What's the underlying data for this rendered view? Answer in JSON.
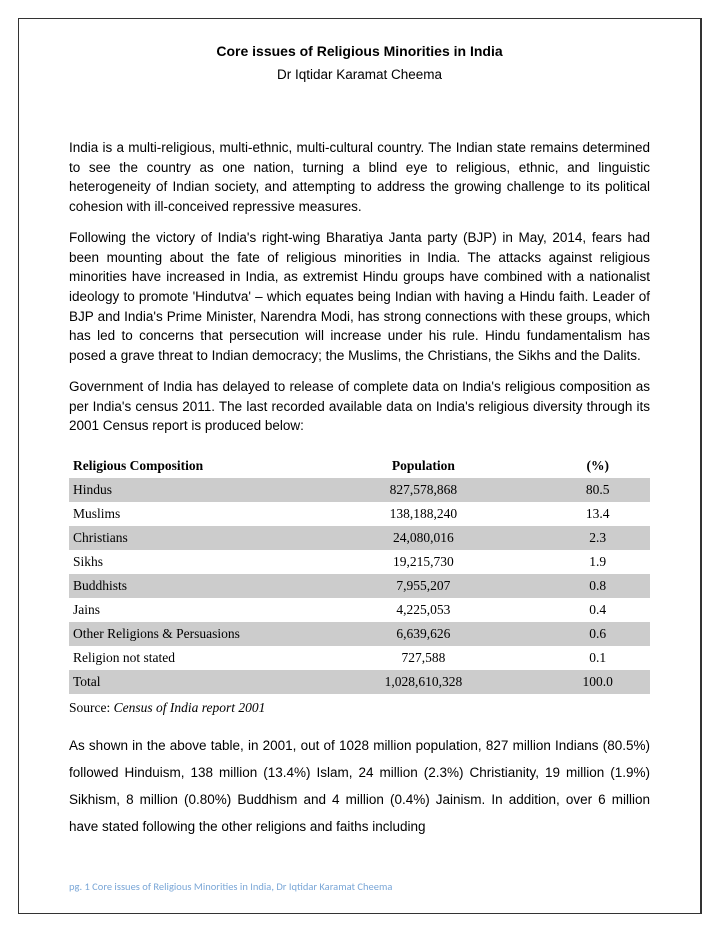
{
  "title": "Core issues of Religious Minorities in India",
  "author": "Dr Iqtidar Karamat Cheema",
  "paragraphs": {
    "p1": "India is a multi-religious, multi-ethnic, multi-cultural country. The Indian state remains determined to see the country as one nation, turning a blind eye to religious, ethnic, and linguistic heterogeneity of Indian society, and attempting to address the growing challenge to its political cohesion with ill-conceived repressive measures.",
    "p2": "Following the victory of India's right-wing Bharatiya Janta party (BJP) in May, 2014, fears had been mounting about the fate of religious minorities in India. The attacks against religious minorities have increased in India, as extremist Hindu groups have combined with a nationalist ideology to promote 'Hindutva' – which equates being Indian with having a Hindu faith. Leader of BJP and India's Prime Minister, Narendra Modi, has strong connections with these groups, which has led to concerns that persecution will increase under his rule. Hindu fundamentalism has posed a grave threat to Indian democracy; the Muslims, the Christians, the Sikhs and the Dalits.",
    "p3": "Government of India has delayed to release of complete data on India's religious composition as per India's census 2011. The last recorded available data on India's religious diversity through its 2001 Census report is produced below:",
    "p4": "As shown in the above table, in 2001, out of 1028 million population, 827 million Indians (80.5%) followed Hinduism, 138 million (13.4%) Islam, 24 million (2.3%) Christianity, 19 million (1.9%) Sikhism, 8 million (0.80%) Buddhism and 4 million (0.4%)  Jainism. In addition, over 6 million have stated following the other religions and faiths including"
  },
  "table": {
    "headers": {
      "col1": "Religious Composition",
      "col2": "Population",
      "col3": "(%)"
    },
    "rows": [
      {
        "name": "Hindus",
        "pop": "827,578,868",
        "pct": "80.5",
        "shaded": true
      },
      {
        "name": "Muslims",
        "pop": "138,188,240",
        "pct": "13.4",
        "shaded": false
      },
      {
        "name": "Christians",
        "pop": "24,080,016",
        "pct": "2.3",
        "shaded": true
      },
      {
        "name": "Sikhs",
        "pop": "19,215,730",
        "pct": "1.9",
        "shaded": false
      },
      {
        "name": "Buddhists",
        "pop": "7,955,207",
        "pct": "0.8",
        "shaded": true
      },
      {
        "name": "Jains",
        "pop": "4,225,053",
        "pct": "0.4",
        "shaded": false
      },
      {
        "name": "Other Religions & Persuasions",
        "pop": "6,639,626",
        "pct": "0.6",
        "shaded": true
      },
      {
        "name": "Religion not stated",
        "pop": "727,588",
        "pct": "0.1",
        "shaded": false
      },
      {
        "name": "Total",
        "pop": "1,028,610,328",
        "pct": "100.0",
        "shaded": true
      }
    ]
  },
  "source": {
    "label": "Source: ",
    "text": "Census of India report 2001"
  },
  "footer": "pg. 1 Core issues of Religious Minorities in India, Dr Iqtidar Karamat Cheema",
  "colors": {
    "border": "#333333",
    "shaded_row": "#cccccc",
    "footer_text": "#7ba7d7",
    "body_text": "#000000",
    "background": "#ffffff"
  }
}
